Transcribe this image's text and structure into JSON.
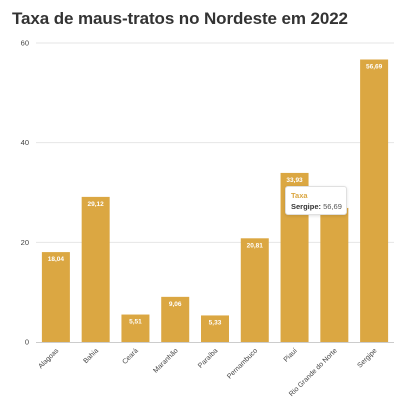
{
  "title": "Taxa de maus-tratos no Nordeste em 2022",
  "colors": {
    "bar": "#dba742",
    "grid": "#e6e6e6",
    "axis": "#cccccc",
    "tick_text": "#444444",
    "tooltip_accent": "#dba742"
  },
  "tooltip": {
    "series": "Taxa",
    "category": "Sergipe:",
    "value": "56,69"
  },
  "chart_data": {
    "type": "bar",
    "categories": [
      "Alagoas",
      "Bahia",
      "Ceará",
      "Maranhão",
      "Paraíba",
      "Pernambuco",
      "Piauí",
      "Rio Grande do Norte",
      "Sergipe"
    ],
    "values": [
      18.04,
      29.12,
      5.51,
      9.06,
      5.33,
      20.81,
      33.93,
      26.9,
      56.69
    ],
    "data_labels": [
      "18,04",
      "29,12",
      "5,51",
      "9,06",
      "5,33",
      "20,81",
      "33,93",
      "",
      "56,69"
    ],
    "y_ticks": [
      "0",
      "20",
      "40",
      "60"
    ],
    "ylim": [
      0,
      60
    ],
    "grid": true,
    "legend": "none"
  }
}
